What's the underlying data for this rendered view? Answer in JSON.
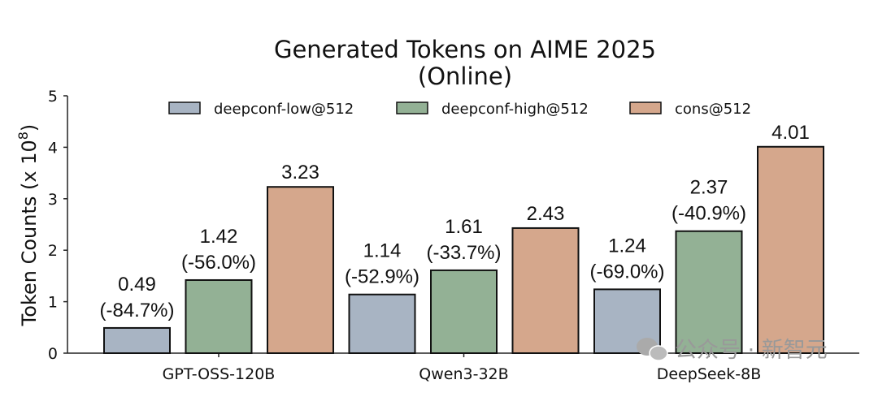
{
  "chart_data": {
    "type": "bar",
    "title": "Generated Tokens on AIME 2025",
    "subtitle": "(Online)",
    "xlabel": "",
    "ylabel": "Token Counts (x 10",
    "ylabel_exponent": "8",
    "ylim": [
      0,
      5
    ],
    "yticks": [
      "0",
      "1",
      "2",
      "3",
      "4",
      "5"
    ],
    "grid": false,
    "legend_position": "top",
    "categories": [
      "GPT-OSS-120B",
      "Qwen3-32B",
      "DeepSeek-8B"
    ],
    "series": [
      {
        "name": "deepconf-low@512",
        "color": "#a8b4c3",
        "values": [
          0.49,
          1.14,
          1.24
        ],
        "labels": [
          "0.49",
          "1.14",
          "1.24"
        ],
        "pct_labels": [
          "(-84.7%)",
          "(-52.9%)",
          "(-69.0%)"
        ]
      },
      {
        "name": "deepconf-high@512",
        "color": "#93b195",
        "values": [
          1.42,
          1.61,
          2.37
        ],
        "labels": [
          "1.42",
          "1.61",
          "2.37"
        ],
        "pct_labels": [
          "(-56.0%)",
          "(-33.7%)",
          "(-40.9%)"
        ]
      },
      {
        "name": "cons@512",
        "color": "#d5a78c",
        "values": [
          3.23,
          2.43,
          4.01
        ],
        "labels": [
          "3.23",
          "2.43",
          "4.01"
        ],
        "pct_labels": [
          "",
          "",
          ""
        ]
      }
    ]
  },
  "watermark": "公众号 · 新智元"
}
